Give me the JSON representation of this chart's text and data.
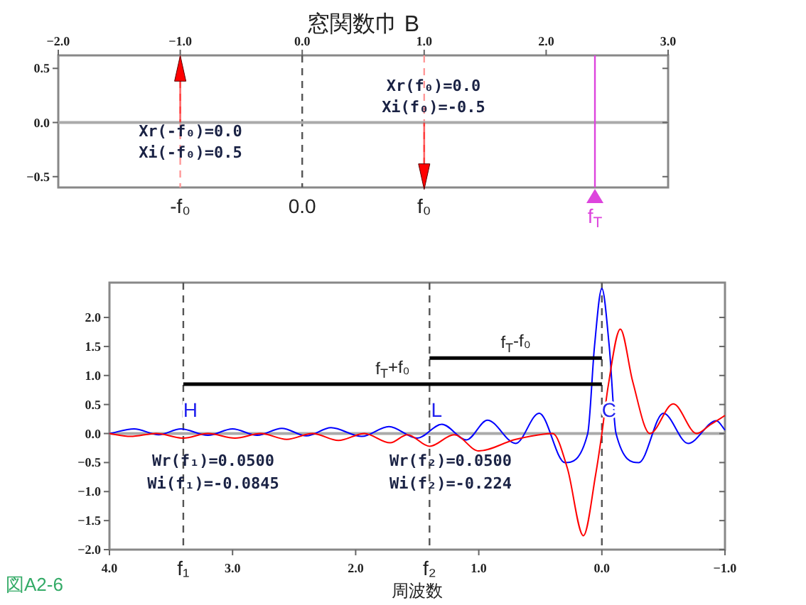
{
  "chart_data": [
    {
      "type": "lollipop",
      "title": "窓関数巾 B",
      "x": [
        -1,
        1
      ],
      "values": [
        0.5,
        -0.5
      ],
      "color": "#ff0000",
      "marker": "triangle",
      "xlim": [
        -2,
        3
      ],
      "xticks": [
        {
          "value": -2,
          "label": "−2.0"
        },
        {
          "value": -1,
          "label": "−1.0"
        },
        {
          "value": 0,
          "label": "0.0"
        },
        {
          "value": 1,
          "label": "1.0"
        },
        {
          "value": 2,
          "label": "2.0"
        },
        {
          "value": 3,
          "label": "3.0"
        }
      ],
      "ylim": [
        -0.6,
        0.62
      ],
      "yticks": [
        {
          "value": 0.5,
          "label": "0.5"
        },
        {
          "value": 0,
          "label": "0.0"
        },
        {
          "value": -0.5,
          "label": "−0.5"
        }
      ],
      "ref_lines": [
        {
          "axis": "x",
          "value": -1,
          "label": "-f₀",
          "color": "#ff9999",
          "line_style": "dashed"
        },
        {
          "axis": "x",
          "value": 0,
          "label": "0.0",
          "color": "#555555",
          "line_style": "dashed"
        },
        {
          "axis": "x",
          "value": 1,
          "label": "f₀",
          "color": "#ff9999",
          "line_style": "dashed"
        },
        {
          "axis": "y",
          "value": 0,
          "color": "#aaaaaa"
        },
        {
          "axis": "x",
          "value": 2.4,
          "label": "f$_{T}$",
          "color": "#dd44dd"
        }
      ],
      "annotations": [
        "Xr(-f₀)=0.0",
        "Xi(-f₀)=0.5",
        "Xr(f₀)=0.0",
        "Xi(f₀)=-0.5"
      ]
    },
    {
      "type": "line",
      "xlabel": "周波数",
      "xlim": [
        4,
        -1
      ],
      "xticks": [
        {
          "value": 4,
          "label": "4.0"
        },
        {
          "value": 3,
          "label": "3.0"
        },
        {
          "value": 2,
          "label": "2.0"
        },
        {
          "value": 1,
          "label": "1.0"
        },
        {
          "value": 0,
          "label": "0.0"
        },
        {
          "value": -1,
          "label": "−1.0"
        }
      ],
      "ylim": [
        -2,
        2.6
      ],
      "yticks": [
        {
          "value": 2,
          "label": "2.0"
        },
        {
          "value": 1.5,
          "label": "1.5"
        },
        {
          "value": 1,
          "label": "1.0"
        },
        {
          "value": 0.5,
          "label": "0.5"
        },
        {
          "value": 0,
          "label": "0.0"
        },
        {
          "value": -0.5,
          "label": "−0.5"
        },
        {
          "value": -1,
          "label": "−1.0"
        },
        {
          "value": -1.5,
          "label": "−1.5"
        },
        {
          "value": -2,
          "label": "−2.0"
        }
      ],
      "series": [
        {
          "color": "#0000ff",
          "x": [
            4.0,
            3.8,
            3.6,
            3.42,
            3.2,
            3.0,
            2.8,
            2.6,
            2.4,
            2.2,
            1.95,
            1.73,
            1.5,
            1.3,
            1.1,
            0.93,
            0.7,
            0.51,
            0.3,
            0.115,
            0.06,
            0.0,
            -0.06,
            -0.115,
            -0.3,
            -0.5,
            -0.7,
            -0.93,
            -1.0
          ],
          "values": [
            0.0,
            0.08,
            -0.02,
            0.08,
            -0.03,
            0.08,
            -0.03,
            0.09,
            -0.04,
            0.1,
            -0.05,
            0.12,
            -0.08,
            0.16,
            -0.11,
            0.23,
            -0.17,
            0.35,
            -0.5,
            0.0,
            1.5,
            2.5,
            1.5,
            0.0,
            -0.5,
            0.35,
            -0.17,
            0.22,
            0.06
          ]
        },
        {
          "color": "#ff0000",
          "x": [
            4.0,
            3.83,
            3.62,
            3.4,
            3.2,
            2.98,
            2.77,
            2.56,
            2.35,
            2.14,
            1.93,
            1.72,
            1.58,
            1.4,
            1.2,
            1.0,
            0.7,
            0.4,
            0.28,
            0.15,
            0.05,
            0.0,
            -0.05,
            -0.15,
            -0.25,
            -0.39,
            -0.58,
            -0.77,
            -0.88,
            -1.0
          ],
          "values": [
            0.0,
            -0.05,
            0.0,
            -0.08,
            0.0,
            -0.08,
            0.0,
            -0.1,
            0.0,
            -0.12,
            0.0,
            -0.16,
            -0.02,
            -0.22,
            -0.02,
            -0.3,
            -0.1,
            0.0,
            -0.6,
            -1.76,
            -0.7,
            0.0,
            0.8,
            1.8,
            0.9,
            0.0,
            0.51,
            0.0,
            0.15,
            0.31
          ]
        },
        {
          "type": "line",
          "color": "#000000",
          "x": [
            3.4,
            0
          ],
          "values": [
            0.85,
            0.85
          ]
        },
        {
          "type": "line",
          "color": "#000000",
          "x": [
            1.4,
            0
          ],
          "values": [
            1.3,
            1.3
          ]
        }
      ],
      "ref_lines": [
        {
          "axis": "y",
          "value": 0,
          "color": "#aaaaaa"
        },
        {
          "axis": "x",
          "value": 3.4,
          "label": "f₁",
          "color": "#555555",
          "line_style": "dashed"
        },
        {
          "axis": "x",
          "value": 1.4,
          "label": "f₂",
          "color": "#555555",
          "line_style": "dashed"
        },
        {
          "axis": "x",
          "value": 0,
          "color": "#555555",
          "line_style": "dashed"
        }
      ],
      "annotations": [
        {
          "text": "H",
          "x": 3.4,
          "y": 0.44
        },
        {
          "text": "L",
          "x": 1.4,
          "y": 0.44
        },
        {
          "text": "C",
          "x": 0,
          "y": 0.44
        },
        {
          "text": "f$_{T}$+f₀",
          "x": 1.7,
          "y": 0.85
        },
        {
          "text": "f$_{T}$-f₀",
          "x": 0.7,
          "y": 1.3
        },
        "Wr(f₁)=0.0500",
        "Wi(f₁)=-0.0845",
        "Wr(f₂)=0.0500",
        "Wi(f₂)=-0.224",
        "図A2-6"
      ]
    }
  ]
}
